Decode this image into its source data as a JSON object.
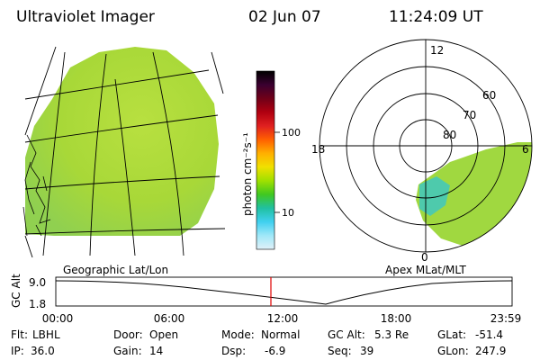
{
  "header": {
    "title": "Ultraviolet Imager",
    "date": "02 Jun 07",
    "time": "11:24:09 UT"
  },
  "colorbar": {
    "unit_label": "photon cm⁻²s⁻¹",
    "tick_labels": [
      "100",
      "10"
    ],
    "colors": [
      "#000000",
      "#3a0030",
      "#700018",
      "#b00010",
      "#e02020",
      "#ff6000",
      "#ffb000",
      "#f0e000",
      "#a0e000",
      "#40c820",
      "#20c0a0",
      "#40d0f0",
      "#a0e8f8",
      "#e0f0f8"
    ]
  },
  "left_map": {
    "caption": "Geographic Lat/Lon",
    "fill_color": "#a8d838"
  },
  "polar_plot": {
    "caption": "Apex MLat/MLT",
    "mlt_labels": {
      "top": "12",
      "left": "18",
      "right": "6",
      "bottom": "0"
    },
    "lat_labels": [
      "60",
      "70",
      "80"
    ]
  },
  "altitude_plot": {
    "axis_label": "GC Alt",
    "y_ticks": [
      "9.0",
      "1.8"
    ],
    "x_ticks": [
      "00:00",
      "06:00",
      "12:00",
      "18:00",
      "23:59"
    ],
    "marker_color": "#e00000"
  },
  "info": {
    "flt_label": "Flt:",
    "flt_value": "LBHL",
    "ip_label": "IP:",
    "ip_value": "36.0",
    "door_label": "Door:",
    "door_value": "Open",
    "gain_label": "Gain:",
    "gain_value": "14",
    "mode_label": "Mode:",
    "mode_value": "Normal",
    "dsp_label": "Dsp:",
    "dsp_value": "-6.9",
    "gcalt_label": "GC Alt:",
    "gcalt_value": "5.3 Re",
    "seq_label": "Seq:",
    "seq_value": "39",
    "glat_label": "GLat:",
    "glat_value": "-51.4",
    "glon_label": "GLon:",
    "glon_value": "247.9"
  }
}
